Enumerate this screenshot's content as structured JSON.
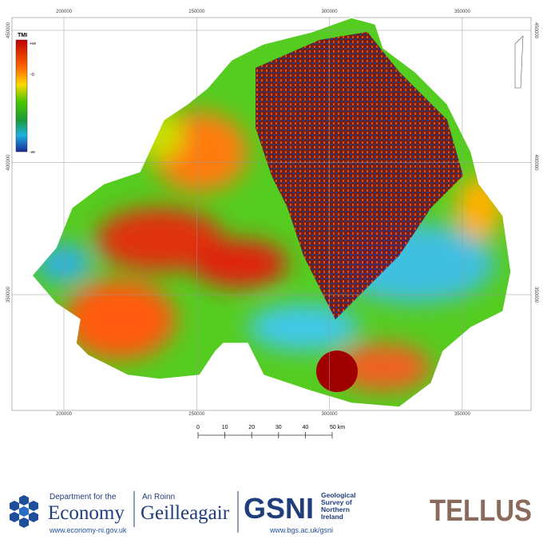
{
  "map": {
    "eastings": [
      200000,
      250000,
      300000,
      350000
    ],
    "northings": [
      450000,
      400000,
      350000
    ],
    "legend": {
      "title": "TMI",
      "labels": [
        "+ve",
        "~0",
        "-ve"
      ]
    },
    "scale_bar": {
      "ticks": [
        0,
        10,
        20,
        30,
        40,
        {
          "value": 50,
          "label": "50 km"
        }
      ]
    }
  },
  "footer": {
    "economy": {
      "line1": "Department for the",
      "name": "Economy",
      "url": "www.economy-ni.gov.uk",
      "irish1": "An Roinn",
      "irish2": "Geilleagair"
    },
    "gsni": {
      "name": "GSNI",
      "full": [
        "Geological",
        "Survey of",
        "Northern",
        "Ireland"
      ],
      "url": "www.bgs.ac.uk/gsni"
    },
    "tellus": "TELLUS"
  }
}
